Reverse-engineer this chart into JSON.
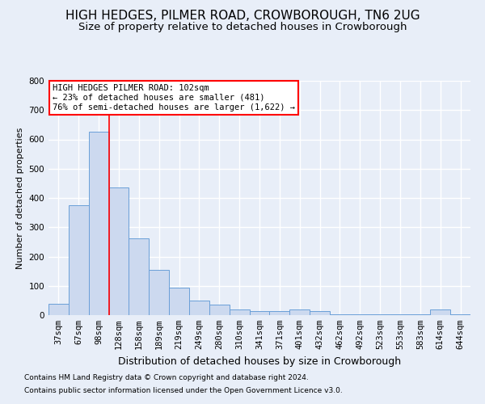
{
  "title": "HIGH HEDGES, PILMER ROAD, CROWBOROUGH, TN6 2UG",
  "subtitle": "Size of property relative to detached houses in Crowborough",
  "xlabel": "Distribution of detached houses by size in Crowborough",
  "ylabel": "Number of detached properties",
  "footnote1": "Contains HM Land Registry data © Crown copyright and database right 2024.",
  "footnote2": "Contains public sector information licensed under the Open Government Licence v3.0.",
  "annotation_line1": "HIGH HEDGES PILMER ROAD: 102sqm",
  "annotation_line2": "← 23% of detached houses are smaller (481)",
  "annotation_line3": "76% of semi-detached houses are larger (1,622) →",
  "bar_color": "#ccd9ef",
  "bar_edge_color": "#6a9fd8",
  "categories": [
    "37sqm",
    "67sqm",
    "98sqm",
    "128sqm",
    "158sqm",
    "189sqm",
    "219sqm",
    "249sqm",
    "280sqm",
    "310sqm",
    "341sqm",
    "371sqm",
    "401sqm",
    "432sqm",
    "462sqm",
    "492sqm",
    "523sqm",
    "553sqm",
    "583sqm",
    "614sqm",
    "644sqm"
  ],
  "values": [
    40,
    375,
    625,
    435,
    262,
    155,
    95,
    50,
    35,
    20,
    15,
    15,
    20,
    15,
    3,
    3,
    3,
    3,
    3,
    18,
    3
  ],
  "ylim": [
    0,
    800
  ],
  "yticks": [
    0,
    100,
    200,
    300,
    400,
    500,
    600,
    700,
    800
  ],
  "background_color": "#e8eef8",
  "grid_color": "#ffffff",
  "title_fontsize": 11,
  "subtitle_fontsize": 9.5,
  "ylabel_fontsize": 8,
  "xlabel_fontsize": 9,
  "tick_fontsize": 7.5,
  "annotation_fontsize": 7.5,
  "footnote_fontsize": 6.5
}
